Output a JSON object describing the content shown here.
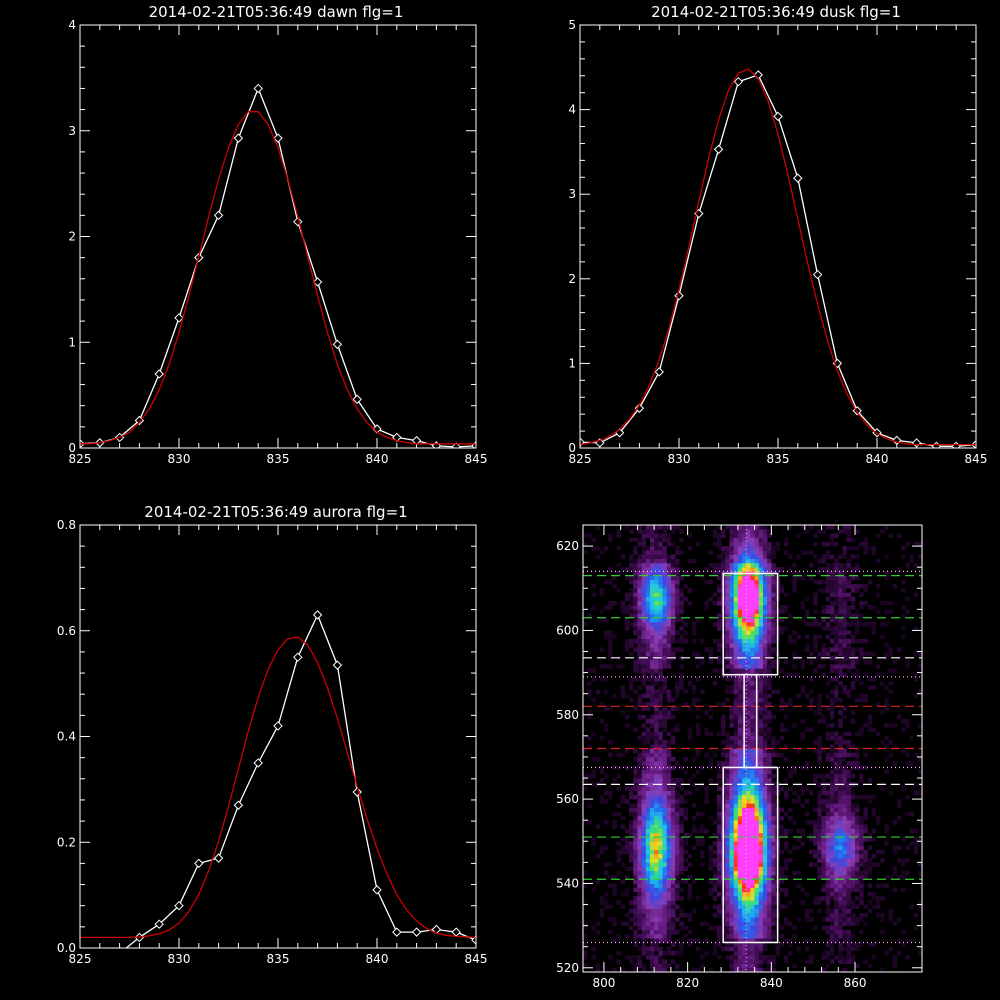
{
  "colors": {
    "background": "#000000",
    "axes": "#ffffff",
    "observed": "#ffffff",
    "fit": "#cc0000",
    "marker_stroke": "#ffffff"
  },
  "chart_data": [
    {
      "id": "dawn",
      "type": "line",
      "title": "2014-02-21T05:36:49 dawn flg=1",
      "xlim": [
        825,
        845
      ],
      "ylim": [
        0,
        4
      ],
      "xticks": [
        "825",
        "830",
        "835",
        "840",
        "845"
      ],
      "yticks": [
        "0",
        "1",
        "2",
        "3",
        "4"
      ],
      "xtick_values": [
        825,
        830,
        835,
        840,
        845
      ],
      "ytick_values": [
        0,
        1,
        2,
        3,
        4
      ],
      "series": [
        {
          "role": "observed",
          "color": "#ffffff",
          "marker": "diamond",
          "x": [
            825,
            826,
            827,
            828,
            829,
            830,
            831,
            832,
            833,
            834,
            835,
            836,
            837,
            838,
            839,
            840,
            841,
            842,
            843,
            844,
            845
          ],
          "y": [
            0.04,
            0.05,
            0.1,
            0.26,
            0.7,
            1.23,
            1.8,
            2.2,
            2.93,
            3.4,
            2.93,
            2.14,
            1.57,
            0.98,
            0.46,
            0.18,
            0.1,
            0.07,
            0.02,
            0.01,
            0.02
          ]
        },
        {
          "role": "fit",
          "color": "#cc0000",
          "x": [
            825,
            825.5,
            826,
            826.5,
            827,
            827.5,
            828,
            828.5,
            829,
            829.5,
            830,
            830.5,
            831,
            831.5,
            832,
            832.5,
            833,
            833.5,
            834,
            834.5,
            835,
            835.5,
            836,
            836.5,
            837,
            837.5,
            838,
            838.5,
            839,
            839.5,
            840,
            840.5,
            841,
            841.5,
            842,
            842.5,
            843,
            843.5,
            844,
            844.5,
            845
          ],
          "y": [
            0.04,
            0.04,
            0.05,
            0.07,
            0.1,
            0.15,
            0.24,
            0.37,
            0.55,
            0.79,
            1.09,
            1.44,
            1.81,
            2.19,
            2.54,
            2.84,
            3.06,
            3.18,
            3.18,
            3.06,
            2.84,
            2.54,
            2.19,
            1.81,
            1.44,
            1.09,
            0.79,
            0.55,
            0.37,
            0.24,
            0.15,
            0.1,
            0.07,
            0.05,
            0.04,
            0.04,
            0.04,
            0.04,
            0.04,
            0.04,
            0.04
          ]
        }
      ]
    },
    {
      "id": "dusk",
      "type": "line",
      "title": "2014-02-21T05:36:49 dusk flg=1",
      "xlim": [
        825,
        845
      ],
      "ylim": [
        0,
        5
      ],
      "xticks": [
        "825",
        "830",
        "835",
        "840",
        "845"
      ],
      "yticks": [
        "0",
        "1",
        "2",
        "3",
        "4",
        "5"
      ],
      "xtick_values": [
        825,
        830,
        835,
        840,
        845
      ],
      "ytick_values": [
        0,
        1,
        2,
        3,
        4,
        5
      ],
      "series": [
        {
          "role": "observed",
          "color": "#ffffff",
          "marker": "diamond",
          "x": [
            825,
            826,
            827,
            828,
            829,
            830,
            831,
            832,
            833,
            834,
            835,
            836,
            837,
            838,
            839,
            840,
            841,
            842,
            843,
            844,
            845
          ],
          "y": [
            0.07,
            0.06,
            0.18,
            0.47,
            0.9,
            1.8,
            2.77,
            3.53,
            4.33,
            4.41,
            3.92,
            3.19,
            2.05,
            1.0,
            0.44,
            0.18,
            0.09,
            0.06,
            0.02,
            0.02,
            0.04
          ]
        },
        {
          "role": "fit",
          "color": "#cc0000",
          "x": [
            825,
            825.5,
            826,
            826.5,
            827,
            827.5,
            828,
            828.5,
            829,
            829.5,
            830,
            830.5,
            831,
            831.5,
            832,
            832.5,
            833,
            833.5,
            834,
            834.5,
            835,
            835.5,
            836,
            836.5,
            837,
            837.5,
            838,
            838.5,
            839,
            839.5,
            840,
            840.5,
            841,
            841.5,
            842,
            842.5,
            843,
            843.5,
            844,
            844.5,
            845
          ],
          "y": [
            0.04,
            0.06,
            0.09,
            0.14,
            0.22,
            0.34,
            0.51,
            0.74,
            1.04,
            1.42,
            1.87,
            2.38,
            2.91,
            3.43,
            3.88,
            4.23,
            4.43,
            4.48,
            4.37,
            4.1,
            3.71,
            3.23,
            2.71,
            2.18,
            1.7,
            1.27,
            0.91,
            0.63,
            0.42,
            0.27,
            0.17,
            0.11,
            0.07,
            0.05,
            0.04,
            0.04,
            0.04,
            0.04,
            0.04,
            0.04,
            0.04
          ]
        }
      ]
    },
    {
      "id": "aurora",
      "type": "line",
      "title": "2014-02-21T05:36:49 aurora flg=1",
      "xlim": [
        825,
        845
      ],
      "ylim": [
        0,
        0.8
      ],
      "xticks": [
        "825",
        "830",
        "835",
        "840",
        "845"
      ],
      "yticks": [
        "0.0",
        "0.2",
        "0.4",
        "0.6",
        "0.8"
      ],
      "xtick_values": [
        825,
        830,
        835,
        840,
        845
      ],
      "ytick_values": [
        0,
        0.2,
        0.4,
        0.6,
        0.8
      ],
      "series": [
        {
          "role": "observed",
          "color": "#ffffff",
          "marker": "diamond",
          "x": [
            825,
            826,
            827,
            828,
            829,
            830,
            831,
            832,
            833,
            834,
            835,
            836,
            837,
            838,
            839,
            840,
            841,
            842,
            843,
            844,
            845
          ],
          "y": [
            -0.03,
            -0.02,
            -0.01,
            0.02,
            0.045,
            0.08,
            0.16,
            0.17,
            0.27,
            0.35,
            0.42,
            0.55,
            0.63,
            0.535,
            0.295,
            0.11,
            0.03,
            0.03,
            0.035,
            0.03,
            0.015
          ]
        },
        {
          "role": "fit",
          "color": "#cc0000",
          "x": [
            825,
            825.5,
            826,
            826.5,
            827,
            827.5,
            828,
            828.5,
            829,
            829.5,
            830,
            830.5,
            831,
            831.5,
            832,
            832.5,
            833,
            833.5,
            834,
            834.5,
            835,
            835.5,
            836,
            836.5,
            837,
            837.5,
            838,
            838.5,
            839,
            839.5,
            840,
            840.5,
            841,
            841.5,
            842,
            842.5,
            843,
            843.5,
            844,
            844.5,
            845
          ],
          "y": [
            0.02,
            0.02,
            0.02,
            0.02,
            0.02,
            0.02,
            0.021,
            0.023,
            0.027,
            0.034,
            0.047,
            0.069,
            0.101,
            0.146,
            0.202,
            0.268,
            0.339,
            0.41,
            0.474,
            0.527,
            0.564,
            0.585,
            0.588,
            0.573,
            0.54,
            0.492,
            0.434,
            0.37,
            0.305,
            0.244,
            0.188,
            0.14,
            0.101,
            0.072,
            0.051,
            0.037,
            0.028,
            0.024,
            0.022,
            0.021,
            0.02
          ]
        }
      ]
    },
    {
      "id": "spectrogram",
      "type": "heatmap",
      "xlim": [
        795,
        876
      ],
      "ylim": [
        519,
        625
      ],
      "xticks": [
        "800",
        "820",
        "840",
        "860"
      ],
      "yticks": [
        "520",
        "540",
        "560",
        "580",
        "600",
        "620"
      ],
      "xtick_values": [
        800,
        820,
        840,
        860
      ],
      "ytick_values": [
        520,
        540,
        560,
        580,
        600,
        620
      ],
      "colormap": [
        "#000000",
        "#3a0a4a",
        "#6a1e86",
        "#8a3fb5",
        "#3d46e0",
        "#1f7ef2",
        "#20c8e8",
        "#3ee06a",
        "#f0e020",
        "#ff3010",
        "#ff40ff"
      ],
      "bands": [
        {
          "center": 812,
          "sigma": 2.8,
          "amp": 0.55
        },
        {
          "center": 834,
          "sigma": 3.0,
          "amp": 1.0
        },
        {
          "center": 856,
          "sigma": 3.0,
          "amp": 0.28
        }
      ],
      "blobs": [
        {
          "x": 834,
          "y": 607,
          "sx": 3,
          "sy": 7,
          "a": 0.85
        },
        {
          "x": 834,
          "y": 548,
          "sx": 3.2,
          "sy": 9,
          "a": 1.05
        },
        {
          "x": 812,
          "y": 607,
          "sx": 2.8,
          "sy": 5,
          "a": 0.5
        },
        {
          "x": 812,
          "y": 548,
          "sx": 2.8,
          "sy": 8,
          "a": 0.62
        },
        {
          "x": 856,
          "y": 548,
          "sx": 3,
          "sy": 5,
          "a": 0.4
        },
        {
          "x": 834,
          "y": 545,
          "sx": 1.5,
          "sy": 2,
          "a": 0.55
        },
        {
          "x": 834,
          "y": 608,
          "sx": 1.2,
          "sy": 1.5,
          "a": 0.4
        }
      ],
      "boxes": [
        {
          "x0": 828.5,
          "x1": 841.5,
          "y0": 589.5,
          "y1": 613.5
        },
        {
          "x0": 828.5,
          "x1": 841.5,
          "y0": 526,
          "y1": 567.5
        }
      ],
      "connector": {
        "x0": 833.5,
        "x1": 836.5,
        "y0": 567.5,
        "y1": 589.5
      },
      "vertical_line_x": 834,
      "hlines": [
        {
          "y": 613,
          "color": "#33cc33",
          "style": "dashed"
        },
        {
          "y": 603,
          "color": "#33cc33",
          "style": "dashed"
        },
        {
          "y": 593.5,
          "color": "#ffffff",
          "style": "dashed"
        },
        {
          "y": 582,
          "color": "#dd2222",
          "style": "dashed"
        },
        {
          "y": 572,
          "color": "#dd2222",
          "style": "dashed"
        },
        {
          "y": 563.5,
          "color": "#ffffff",
          "style": "dashed"
        },
        {
          "y": 551,
          "color": "#33cc33",
          "style": "dashed"
        },
        {
          "y": 541,
          "color": "#33cc33",
          "style": "dashed"
        },
        {
          "y": 614,
          "color": "#ffb0ff",
          "style": "dotted"
        },
        {
          "y": 589,
          "color": "#ffb0ff",
          "style": "dotted"
        },
        {
          "y": 567.5,
          "color": "#ffb0ff",
          "style": "dotted"
        },
        {
          "y": 526,
          "color": "#ffb0ff",
          "style": "dotted"
        }
      ]
    }
  ]
}
